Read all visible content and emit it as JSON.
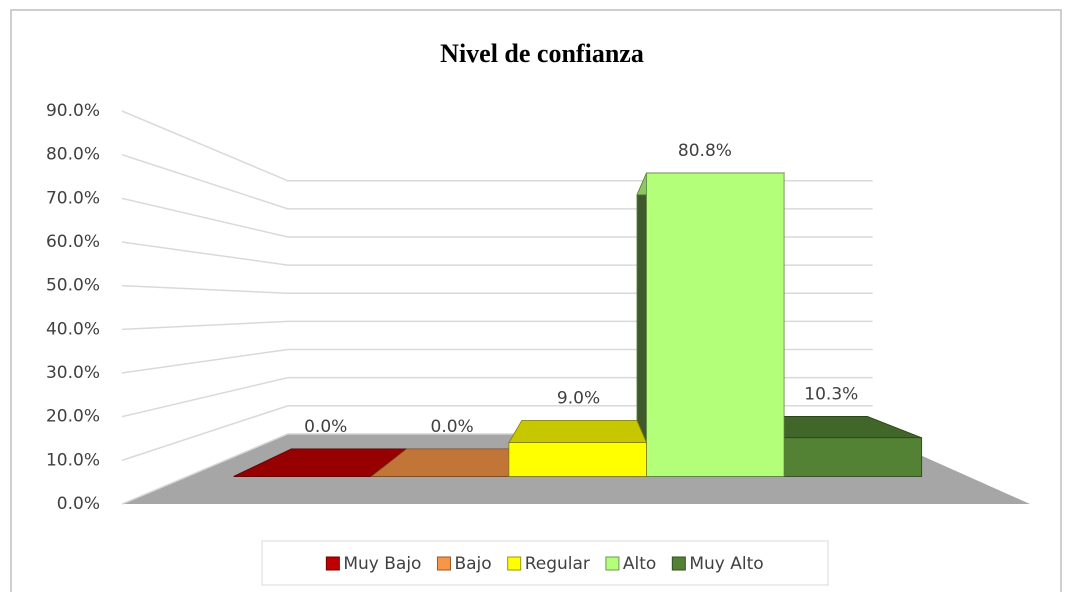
{
  "chart_data": {
    "type": "bar3d",
    "title": "Nivel de confianza",
    "categories": [
      "Muy Bajo",
      "Bajo",
      "Regular",
      "Alto",
      "Muy Alto"
    ],
    "values": [
      0,
      0,
      9.0,
      80.8,
      10.3
    ],
    "value_labels": [
      "0.0%",
      "0.0%",
      "9.0%",
      "80.8%",
      "10.3%"
    ],
    "colors": [
      "#c00000",
      "#f79646",
      "#ffff00",
      "#b3ff7a",
      "#548235"
    ],
    "ylim": [
      0,
      90
    ],
    "yticks": [
      {
        "value": 0,
        "label": "0.0%"
      },
      {
        "value": 10,
        "label": "10.0%"
      },
      {
        "value": 20,
        "label": "20.0%"
      },
      {
        "value": 30,
        "label": "30.0%"
      },
      {
        "value": 40,
        "label": "40.0%"
      },
      {
        "value": 50,
        "label": "50.0%"
      },
      {
        "value": 60,
        "label": "60.0%"
      },
      {
        "value": 70,
        "label": "70.0%"
      },
      {
        "value": 80,
        "label": "80.0%"
      },
      {
        "value": 90,
        "label": "90.0%"
      }
    ],
    "grid": true,
    "legend": "bottom"
  }
}
